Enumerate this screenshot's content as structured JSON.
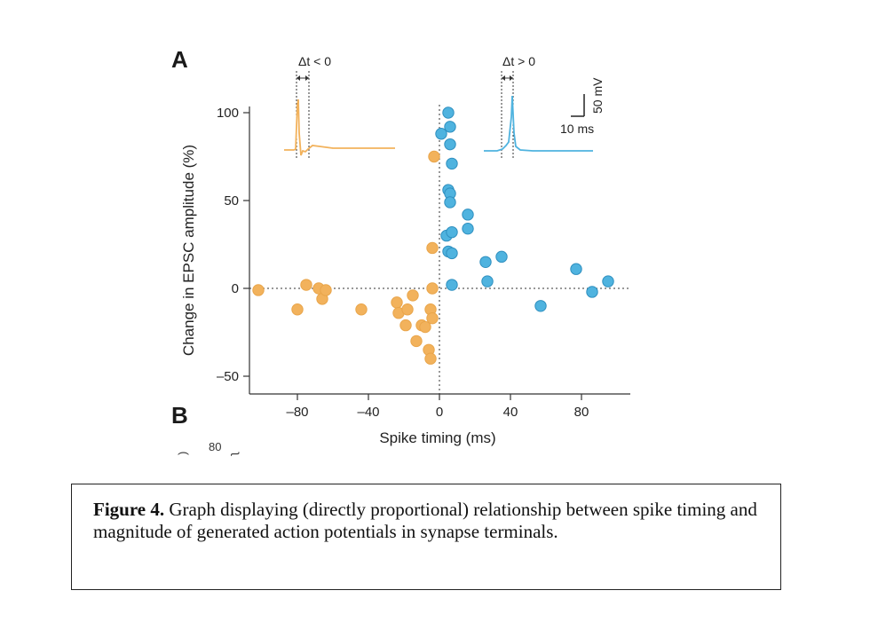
{
  "chart_data": {
    "type": "scatter",
    "panel_label": "A",
    "next_panel_label": "B",
    "next_panel_fragment": "80",
    "xlabel": "Spike timing (ms)",
    "ylabel": "Change in EPSC amplitude (%)",
    "xlim": [
      -108,
      108
    ],
    "ylim": [
      -60,
      110
    ],
    "x_ticks": [
      -80,
      -40,
      0,
      40,
      80
    ],
    "x_tick_labels": [
      "–80",
      "–40",
      "0",
      "40",
      "80"
    ],
    "y_ticks": [
      -50,
      0,
      50,
      100
    ],
    "y_tick_labels": [
      "–50",
      "0",
      "50",
      "100"
    ],
    "reference_lines": {
      "horizontal_y": 0,
      "vertical_x": 0,
      "style": "dotted"
    },
    "grid": false,
    "series": [
      {
        "color": "#f2b25c",
        "points": [
          [
            -102,
            -1
          ],
          [
            -80,
            -12
          ],
          [
            -75,
            2
          ],
          [
            -68,
            0
          ],
          [
            -66,
            -6
          ],
          [
            -64,
            -1
          ],
          [
            -44,
            -12
          ],
          [
            -24,
            -8
          ],
          [
            -23,
            -14
          ],
          [
            -19,
            -21
          ],
          [
            -18,
            -12
          ],
          [
            -15,
            -4
          ],
          [
            -13,
            -30
          ],
          [
            -10,
            -21
          ],
          [
            -8,
            -22
          ],
          [
            -6,
            -35
          ],
          [
            -5,
            -40
          ],
          [
            -5,
            -12
          ],
          [
            -4,
            -17
          ],
          [
            -4,
            0
          ],
          [
            -4,
            23
          ],
          [
            -3,
            75
          ]
        ]
      },
      {
        "color": "#4fb3df",
        "points": [
          [
            1,
            88
          ],
          [
            5,
            100
          ],
          [
            6,
            92
          ],
          [
            6,
            82
          ],
          [
            7,
            71
          ],
          [
            5,
            56
          ],
          [
            6,
            54
          ],
          [
            6,
            49
          ],
          [
            4,
            30
          ],
          [
            7,
            32
          ],
          [
            5,
            21
          ],
          [
            7,
            20
          ],
          [
            7,
            2
          ],
          [
            16,
            42
          ],
          [
            16,
            34
          ],
          [
            26,
            15
          ],
          [
            27,
            4
          ],
          [
            35,
            18
          ],
          [
            57,
            -10
          ],
          [
            77,
            11
          ],
          [
            86,
            -2
          ],
          [
            95,
            4
          ]
        ]
      }
    ],
    "insets": [
      {
        "label": "Δt < 0",
        "color": "#f2b25c"
      },
      {
        "label": "Δt > 0",
        "color": "#4fb3df"
      }
    ],
    "scale_bar": {
      "voltage_label": "50 mV",
      "time_label": "10 ms"
    }
  },
  "caption": {
    "bold_lead": "Figure 4.",
    "text": " Graph displaying (directly proportional) relationship between spike timing and magnitude of generated action potentials in synapse terminals."
  }
}
